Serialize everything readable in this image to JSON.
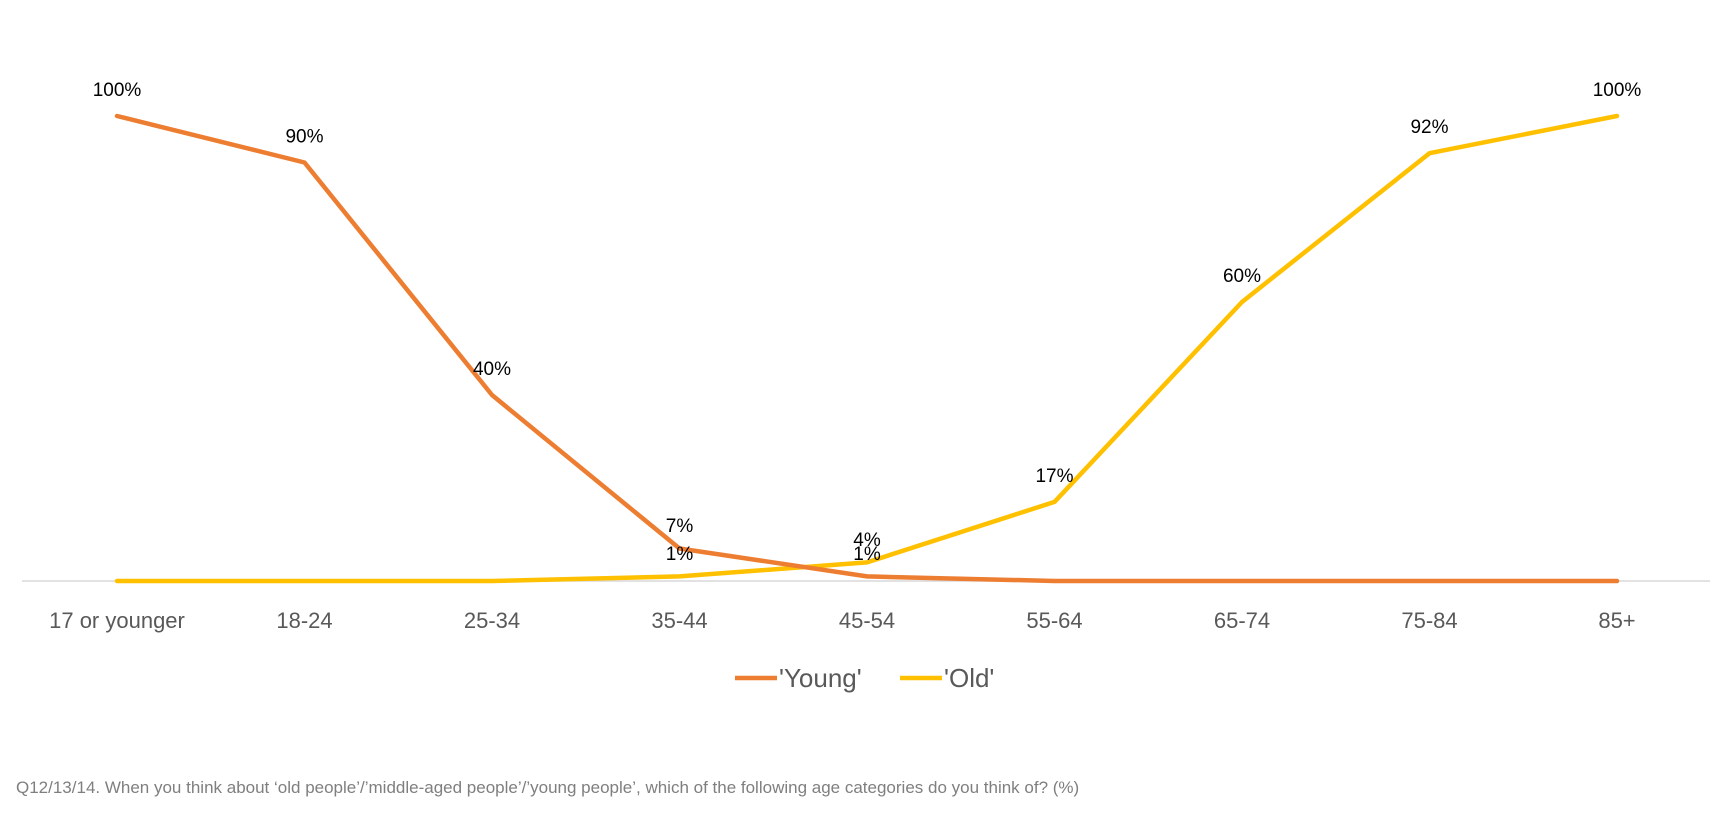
{
  "chart_data": {
    "type": "line",
    "categories": [
      "17 or younger",
      "18-24",
      "25-34",
      "35-44",
      "45-54",
      "55-64",
      "65-74",
      "75-84",
      "85+"
    ],
    "series": [
      {
        "name": "'Young'",
        "color": "#ED7D31",
        "values": [
          100,
          90,
          40,
          7,
          1,
          0,
          0,
          0,
          0
        ],
        "labels": [
          "100%",
          "90%",
          "40%",
          "7%",
          "1%",
          "",
          "",
          "",
          ""
        ]
      },
      {
        "name": "'Old'",
        "color": "#FFC000",
        "values": [
          0,
          0,
          0,
          1,
          4,
          17,
          60,
          92,
          100
        ],
        "labels": [
          "",
          "",
          "",
          "1%",
          "4%",
          "17%",
          "60%",
          "92%",
          "100%"
        ]
      }
    ],
    "ylim": [
      0,
      100
    ],
    "grid": false,
    "legend_position": "bottom",
    "axis_color": "#D9D9D9"
  },
  "footnote": "Q12/13/14. When you think about ‘old people’/’middle-aged people’/’young people’, which of the following age categories do you think of? (%)"
}
